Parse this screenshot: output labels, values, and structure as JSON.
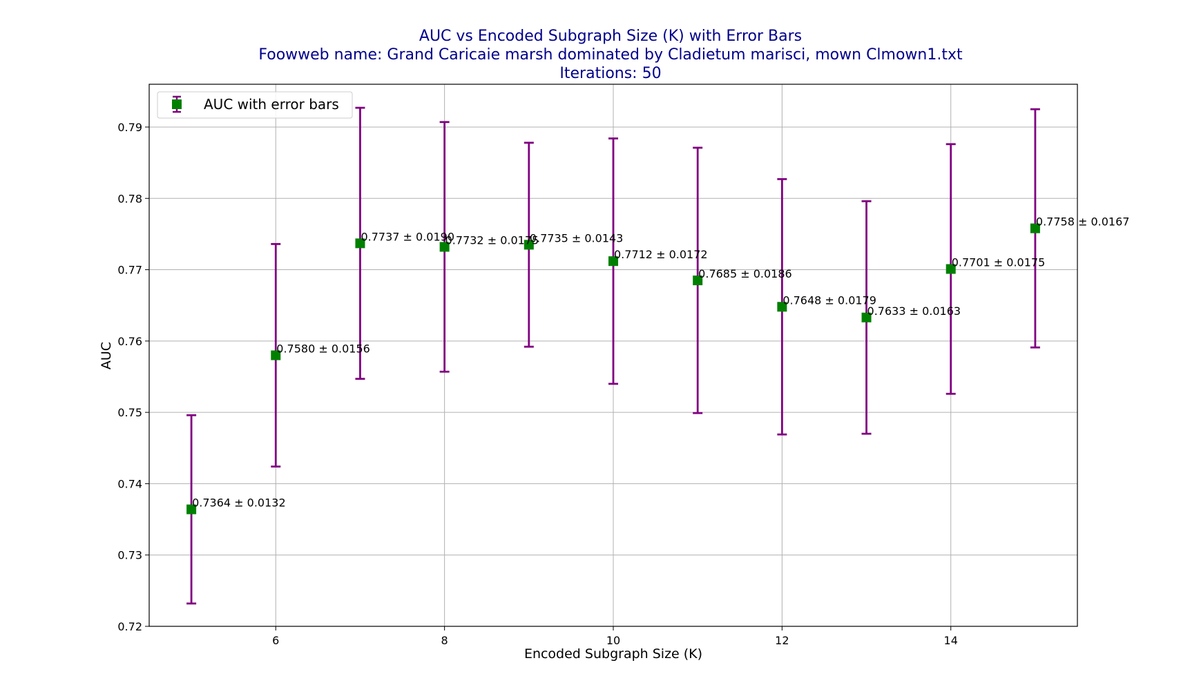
{
  "chart_data": {
    "type": "scatter",
    "title_lines": [
      "AUC vs Encoded Subgraph Size (K) with Error Bars",
      "Foowweb name: Grand Caricaie  marsh dominated by Cladietum marisci, mown  Clmown1.txt",
      "Iterations: 50"
    ],
    "xlabel": "Encoded Subgraph Size (K)",
    "ylabel": "AUC",
    "xlim": [
      4.5,
      15.5
    ],
    "ylim": [
      0.72,
      0.796
    ],
    "x_ticks": [
      6,
      8,
      10,
      12,
      14
    ],
    "y_ticks": [
      0.72,
      0.73,
      0.74,
      0.75,
      0.76,
      0.77,
      0.78,
      0.79
    ],
    "grid": true,
    "legend": {
      "position": "top-left",
      "label": "AUC with error bars"
    },
    "colors": {
      "marker": "#008000",
      "errorbar": "#800080",
      "title": "#00008b"
    },
    "series": [
      {
        "name": "AUC with error bars",
        "x": [
          5,
          6,
          7,
          8,
          9,
          10,
          11,
          12,
          13,
          14,
          15
        ],
        "y": [
          0.7364,
          0.758,
          0.7737,
          0.7732,
          0.7735,
          0.7712,
          0.7685,
          0.7648,
          0.7633,
          0.7701,
          0.7758
        ],
        "err": [
          0.0132,
          0.0156,
          0.019,
          0.0175,
          0.0143,
          0.0172,
          0.0186,
          0.0179,
          0.0163,
          0.0175,
          0.0167
        ],
        "labels": [
          "0.7364 ± 0.0132",
          "0.7580 ± 0.0156",
          "0.7737 ± 0.0190",
          "0.7732 ± 0.0175",
          "0.7735 ± 0.0143",
          "0.7712 ± 0.0172",
          "0.7685 ± 0.0186",
          "0.7648 ± 0.0179",
          "0.7633 ± 0.0163",
          "0.7701 ± 0.0175",
          "0.7758 ± 0.0167"
        ]
      }
    ]
  }
}
